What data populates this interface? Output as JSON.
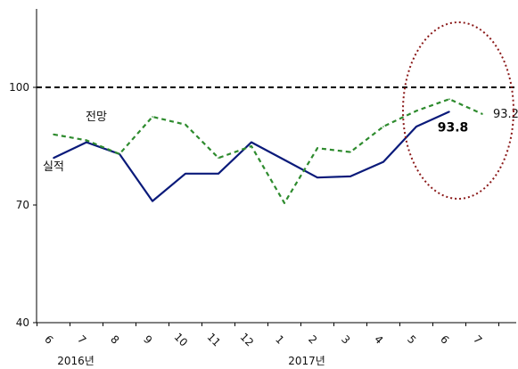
{
  "chart_data": {
    "type": "line",
    "title": "",
    "xlabel": "",
    "ylabel": "",
    "ylim": [
      40,
      120
    ],
    "yticks": [
      40,
      70,
      100
    ],
    "categories": [
      "6",
      "7",
      "8",
      "9",
      "10",
      "11",
      "12",
      "1",
      "2",
      "3",
      "4",
      "5",
      "6",
      "7"
    ],
    "year_labels": [
      {
        "text": "2016년",
        "category_index": 1
      },
      {
        "text": "2017년",
        "category_index": 8
      }
    ],
    "reference_line": {
      "y": 100,
      "style": "dashed",
      "color": "#000000"
    },
    "series": [
      {
        "name": "실적",
        "color": "#0a1a7a",
        "style": "solid",
        "values": [
          82,
          86,
          83,
          71,
          78,
          78,
          86,
          81.5,
          77,
          77.3,
          81,
          90,
          93.8,
          null
        ]
      },
      {
        "name": "전망",
        "color": "#2e8b2e",
        "style": "dashed",
        "values": [
          88,
          86.5,
          83,
          92.5,
          90.5,
          82,
          85,
          70.5,
          84.5,
          83.5,
          90,
          94,
          97,
          93.2
        ]
      }
    ],
    "end_labels": [
      {
        "series_index": 0,
        "text": "93.8",
        "bold": true
      },
      {
        "series_index": 1,
        "text": "93.2",
        "bold": false
      }
    ],
    "highlight_ellipse": {
      "color": "#8b1a1a",
      "style": "dotted"
    }
  }
}
